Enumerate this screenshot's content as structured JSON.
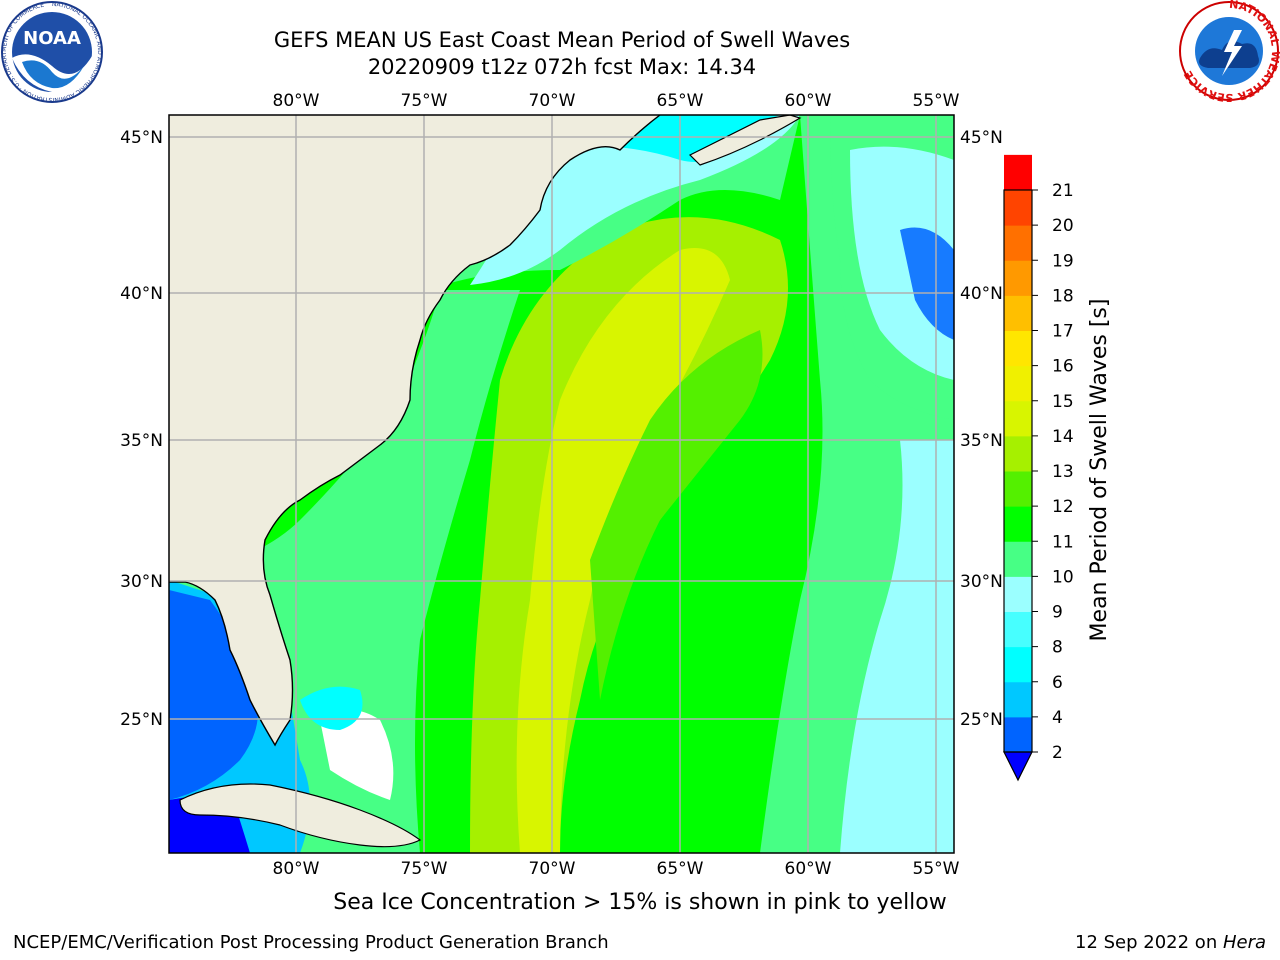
{
  "title": {
    "line1": "GEFS MEAN US East Coast Mean Period of Swell Waves",
    "line2": "20220909 t12z 072h fcst   Max: 14.34"
  },
  "logos": {
    "left": "noaa-logo",
    "left_text": "NOAA",
    "left_ring": "NATIONAL OCEANIC AND ATMOSPHERIC ADMINISTRATION · U.S. DEPARTMENT OF COMMERCE",
    "right": "nws-logo",
    "right_ring": "NATIONAL WEATHER SERVICE"
  },
  "map": {
    "lon_ticks": [
      "80°W",
      "75°W",
      "70°W",
      "65°W",
      "60°W",
      "55°W"
    ],
    "lat_ticks": [
      "45°N",
      "40°N",
      "35°N",
      "30°N",
      "25°N"
    ],
    "land_color": "#efedde",
    "grid_color": "#b0b0b0"
  },
  "colorbar": {
    "label": "Mean Period of Swell Waves [s]",
    "ticks": [
      "2",
      "4",
      "6",
      "8",
      "9",
      "10",
      "11",
      "12",
      "13",
      "14",
      "15",
      "16",
      "17",
      "18",
      "19",
      "20",
      "21"
    ],
    "colors": [
      "#0064ff",
      "#00c8ff",
      "#00ffff",
      "#47ffff",
      "#9bffff",
      "#47ff85",
      "#00ff00",
      "#54f000",
      "#a6f000",
      "#d8f500",
      "#f0f000",
      "#ffe600",
      "#ffbf00",
      "#ff9900",
      "#ff7000",
      "#ff4400",
      "#ff0000"
    ],
    "extend_color": "#0000ff"
  },
  "note": "Sea Ice Concentration > 15% is shown in pink to yellow",
  "footer": {
    "left": "NCEP/EMC/Verification Post Processing Product Generation Branch",
    "date": "12 Sep 2022 on ",
    "machine": "Hera"
  }
}
